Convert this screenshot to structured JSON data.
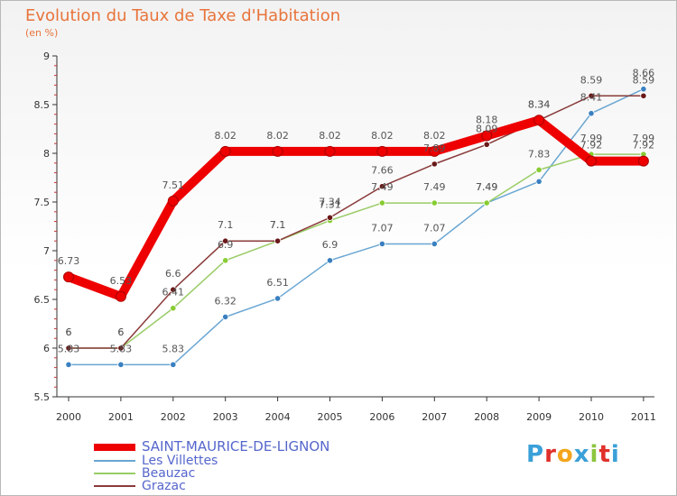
{
  "header": {
    "title": "Evolution du Taux de Taxe d'Habitation",
    "subtitle": "(en %)"
  },
  "logo": {
    "text": "Proxiti",
    "colors": [
      "#3aa0d8",
      "#e0302a",
      "#f4a51c",
      "#3aa0d8",
      "#8cc63e",
      "#e0302a",
      "#3aa0d8"
    ]
  },
  "chart_data": {
    "type": "line",
    "title": "Evolution du Taux de Taxe d'Habitation",
    "subtitle": "(en %)",
    "x": [
      "2000",
      "2001",
      "2002",
      "2003",
      "2004",
      "2005",
      "2006",
      "2007",
      "2008",
      "2009",
      "2010",
      "2011"
    ],
    "ylim": [
      5.5,
      9
    ],
    "yticks": [
      "5.5",
      "6",
      "6.5",
      "7",
      "7.5",
      "8",
      "8.5",
      "9"
    ],
    "grid": false,
    "legend_position": "bottom-left",
    "series": [
      {
        "name": "SAINT-MAURICE-DE-LIGNON",
        "color": "#ee0000",
        "marker_color": "#ee0000",
        "values": [
          6.73,
          6.53,
          7.51,
          8.02,
          8.02,
          8.02,
          8.02,
          8.02,
          8.18,
          8.34,
          7.92,
          7.92
        ],
        "labels": [
          "6.73",
          "6.53",
          "7.51",
          "8.02",
          "8.02",
          "8.02",
          "8.02",
          "8.02",
          "8.18",
          "8.34",
          "7.92",
          "7.92"
        ]
      },
      {
        "name": "Les Villettes",
        "color": "#6aa6d2",
        "marker_color": "#3a80c0",
        "values": [
          5.83,
          5.83,
          5.83,
          6.32,
          6.51,
          6.9,
          7.07,
          7.07,
          7.49,
          7.71,
          8.41,
          8.66
        ],
        "labels": [
          "5.83",
          "5.83",
          "5.83",
          "6.32",
          "6.51",
          "6.9",
          "7.07",
          "7.07",
          "7.49",
          "",
          "8.41",
          "8.66"
        ]
      },
      {
        "name": "Beauzac",
        "color": "#99cc66",
        "marker_color": "#88cc33",
        "values": [
          6,
          6,
          6.41,
          6.9,
          7.1,
          7.31,
          7.49,
          7.49,
          7.49,
          7.83,
          7.99,
          7.99
        ],
        "labels": [
          "6",
          "6",
          "6.41",
          "6.9",
          "7.1",
          "7.31",
          "7.49",
          "7.49",
          "7.49",
          "7.83",
          "7.99",
          "7.99"
        ]
      },
      {
        "name": "Grazac",
        "color": "#8a3a3a",
        "marker_color": "#6a1818",
        "values": [
          6,
          6,
          6.6,
          7.1,
          7.1,
          7.34,
          7.66,
          7.89,
          8.09,
          8.34,
          8.59,
          8.59
        ],
        "labels": [
          "6",
          "6",
          "6.6",
          "7.1",
          "7.1",
          "7.34",
          "7.66",
          "7.89",
          "8.09",
          "8.34",
          "8.59",
          "8.59"
        ]
      }
    ]
  }
}
